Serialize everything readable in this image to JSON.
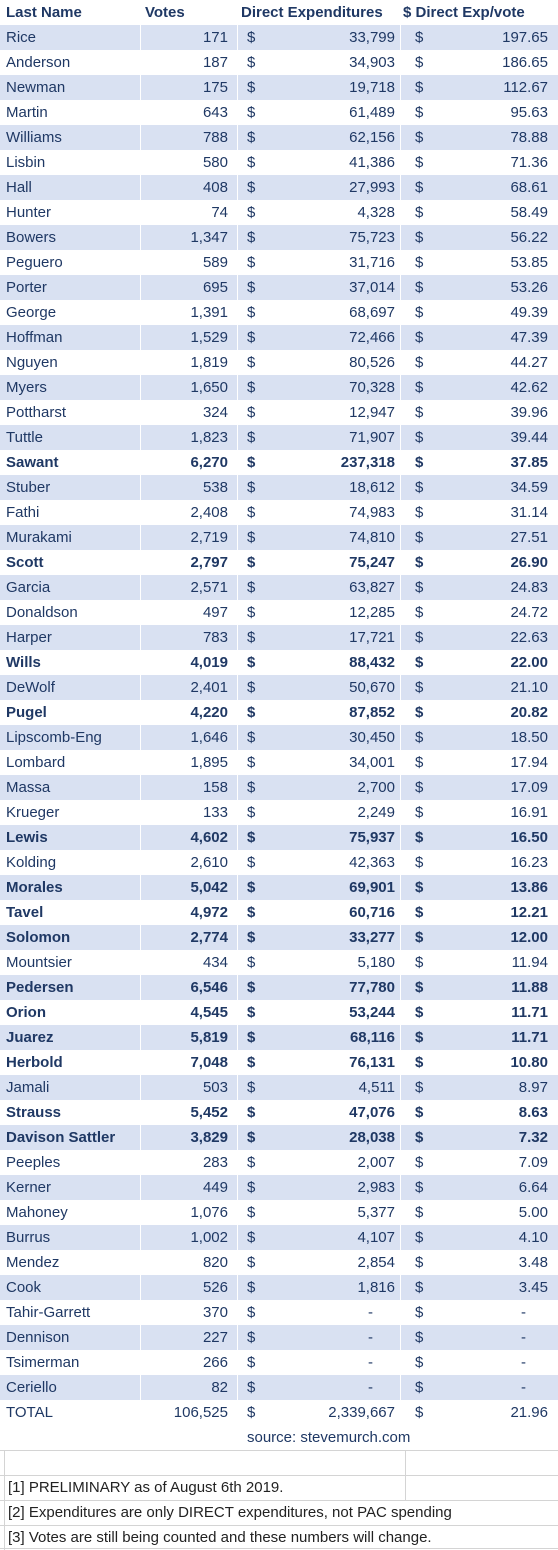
{
  "table": {
    "header": [
      "Last Name",
      "Votes",
      "Direct Expenditures",
      "$ Direct Exp/vote"
    ],
    "rows": [
      {
        "cells": [
          "Rice",
          "171",
          "$",
          "33,799",
          "$",
          "197.65"
        ]
      },
      {
        "cells": [
          "Anderson",
          "187",
          "$",
          "34,903",
          "$",
          "186.65"
        ]
      },
      {
        "cells": [
          "Newman",
          "175",
          "$",
          "19,718",
          "$",
          "112.67"
        ]
      },
      {
        "cells": [
          "Martin",
          "643",
          "$",
          "61,489",
          "$",
          "95.63"
        ]
      },
      {
        "cells": [
          "Williams",
          "788",
          "$",
          "62,156",
          "$",
          "78.88"
        ]
      },
      {
        "cells": [
          "Lisbin",
          "580",
          "$",
          "41,386",
          "$",
          "71.36"
        ]
      },
      {
        "cells": [
          "Hall",
          "408",
          "$",
          "27,993",
          "$",
          "68.61"
        ]
      },
      {
        "cells": [
          "Hunter",
          "74",
          "$",
          "4,328",
          "$",
          "58.49"
        ]
      },
      {
        "cells": [
          "Bowers",
          "1,347",
          "$",
          "75,723",
          "$",
          "56.22"
        ]
      },
      {
        "cells": [
          "Peguero",
          "589",
          "$",
          "31,716",
          "$",
          "53.85"
        ]
      },
      {
        "cells": [
          "Porter",
          "695",
          "$",
          "37,014",
          "$",
          "53.26"
        ]
      },
      {
        "cells": [
          "George",
          "1,391",
          "$",
          "68,697",
          "$",
          "49.39"
        ]
      },
      {
        "cells": [
          "Hoffman",
          "1,529",
          "$",
          "72,466",
          "$",
          "47.39"
        ]
      },
      {
        "cells": [
          "Nguyen",
          "1,819",
          "$",
          "80,526",
          "$",
          "44.27"
        ]
      },
      {
        "cells": [
          "Myers",
          "1,650",
          "$",
          "70,328",
          "$",
          "42.62"
        ]
      },
      {
        "cells": [
          "Pottharst",
          "324",
          "$",
          "12,947",
          "$",
          "39.96"
        ]
      },
      {
        "cells": [
          "Tuttle",
          "1,823",
          "$",
          "71,907",
          "$",
          "39.44"
        ]
      },
      {
        "cells": [
          "Sawant",
          "6,270",
          "$",
          "237,318",
          "$",
          "37.85"
        ],
        "bold": true
      },
      {
        "cells": [
          "Stuber",
          "538",
          "$",
          "18,612",
          "$",
          "34.59"
        ]
      },
      {
        "cells": [
          "Fathi",
          "2,408",
          "$",
          "74,983",
          "$",
          "31.14"
        ]
      },
      {
        "cells": [
          "Murakami",
          "2,719",
          "$",
          "74,810",
          "$",
          "27.51"
        ]
      },
      {
        "cells": [
          "Scott",
          "2,797",
          "$",
          "75,247",
          "$",
          "26.90"
        ],
        "bold": true
      },
      {
        "cells": [
          "Garcia",
          "2,571",
          "$",
          "63,827",
          "$",
          "24.83"
        ]
      },
      {
        "cells": [
          "Donaldson",
          "497",
          "$",
          "12,285",
          "$",
          "24.72"
        ]
      },
      {
        "cells": [
          "Harper",
          "783",
          "$",
          "17,721",
          "$",
          "22.63"
        ]
      },
      {
        "cells": [
          "Wills",
          "4,019",
          "$",
          "88,432",
          "$",
          "22.00"
        ],
        "bold": true
      },
      {
        "cells": [
          "DeWolf",
          "2,401",
          "$",
          "50,670",
          "$",
          "21.10"
        ]
      },
      {
        "cells": [
          "Pugel",
          "4,220",
          "$",
          "87,852",
          "$",
          "20.82"
        ],
        "bold": true
      },
      {
        "cells": [
          "Lipscomb-Eng",
          "1,646",
          "$",
          "30,450",
          "$",
          "18.50"
        ]
      },
      {
        "cells": [
          "Lombard",
          "1,895",
          "$",
          "34,001",
          "$",
          "17.94"
        ]
      },
      {
        "cells": [
          "Massa",
          "158",
          "$",
          "2,700",
          "$",
          "17.09"
        ]
      },
      {
        "cells": [
          "Krueger",
          "133",
          "$",
          "2,249",
          "$",
          "16.91"
        ]
      },
      {
        "cells": [
          "Lewis",
          "4,602",
          "$",
          "75,937",
          "$",
          "16.50"
        ],
        "bold": true
      },
      {
        "cells": [
          "Kolding",
          "2,610",
          "$",
          "42,363",
          "$",
          "16.23"
        ]
      },
      {
        "cells": [
          "Morales",
          "5,042",
          "$",
          "69,901",
          "$",
          "13.86"
        ],
        "bold": true
      },
      {
        "cells": [
          "Tavel",
          "4,972",
          "$",
          "60,716",
          "$",
          "12.21"
        ],
        "bold": true
      },
      {
        "cells": [
          "Solomon",
          "2,774",
          "$",
          "33,277",
          "$",
          "12.00"
        ],
        "bold": true
      },
      {
        "cells": [
          "Mountsier",
          "434",
          "$",
          "5,180",
          "$",
          "11.94"
        ]
      },
      {
        "cells": [
          "Pedersen",
          "6,546",
          "$",
          "77,780",
          "$",
          "11.88"
        ],
        "bold": true
      },
      {
        "cells": [
          "Orion",
          "4,545",
          "$",
          "53,244",
          "$",
          "11.71"
        ],
        "bold": true
      },
      {
        "cells": [
          "Juarez",
          "5,819",
          "$",
          "68,116",
          "$",
          "11.71"
        ],
        "bold": true
      },
      {
        "cells": [
          "Herbold",
          "7,048",
          "$",
          "76,131",
          "$",
          "10.80"
        ],
        "bold": true
      },
      {
        "cells": [
          "Jamali",
          "503",
          "$",
          "4,511",
          "$",
          "8.97"
        ]
      },
      {
        "cells": [
          "Strauss",
          "5,452",
          "$",
          "47,076",
          "$",
          "8.63"
        ],
        "bold": true
      },
      {
        "cells": [
          "Davison Sattler",
          "3,829",
          "$",
          "28,038",
          "$",
          "7.32"
        ],
        "bold": true
      },
      {
        "cells": [
          "Peeples",
          "283",
          "$",
          "2,007",
          "$",
          "7.09"
        ]
      },
      {
        "cells": [
          "Kerner",
          "449",
          "$",
          "2,983",
          "$",
          "6.64"
        ]
      },
      {
        "cells": [
          "Mahoney",
          "1,076",
          "$",
          "5,377",
          "$",
          "5.00"
        ]
      },
      {
        "cells": [
          "Burrus",
          "1,002",
          "$",
          "4,107",
          "$",
          "4.10"
        ]
      },
      {
        "cells": [
          "Mendez",
          "820",
          "$",
          "2,854",
          "$",
          "3.48"
        ]
      },
      {
        "cells": [
          "Cook",
          "526",
          "$",
          "1,816",
          "$",
          "3.45"
        ]
      },
      {
        "cells": [
          "Tahir-Garrett",
          "370",
          "$",
          "-",
          "$",
          "-"
        ]
      },
      {
        "cells": [
          "Dennison",
          "227",
          "$",
          "-",
          "$",
          "-"
        ]
      },
      {
        "cells": [
          "Tsimerman",
          "266",
          "$",
          "-",
          "$",
          "-"
        ]
      },
      {
        "cells": [
          "Ceriello",
          "82",
          "$",
          "-",
          "$",
          "-"
        ]
      },
      {
        "cells": [
          "TOTAL",
          "106,525",
          "$",
          "2,339,667",
          "$",
          "21.96"
        ]
      }
    ],
    "source": "source: stevemurch.com",
    "notes": [
      "[1] PRELIMINARY as of August 6th 2019.",
      "[2] Expenditures are only DIRECT expenditures, not PAC spending",
      "[3] Votes are still being counted and these numbers will change."
    ]
  }
}
